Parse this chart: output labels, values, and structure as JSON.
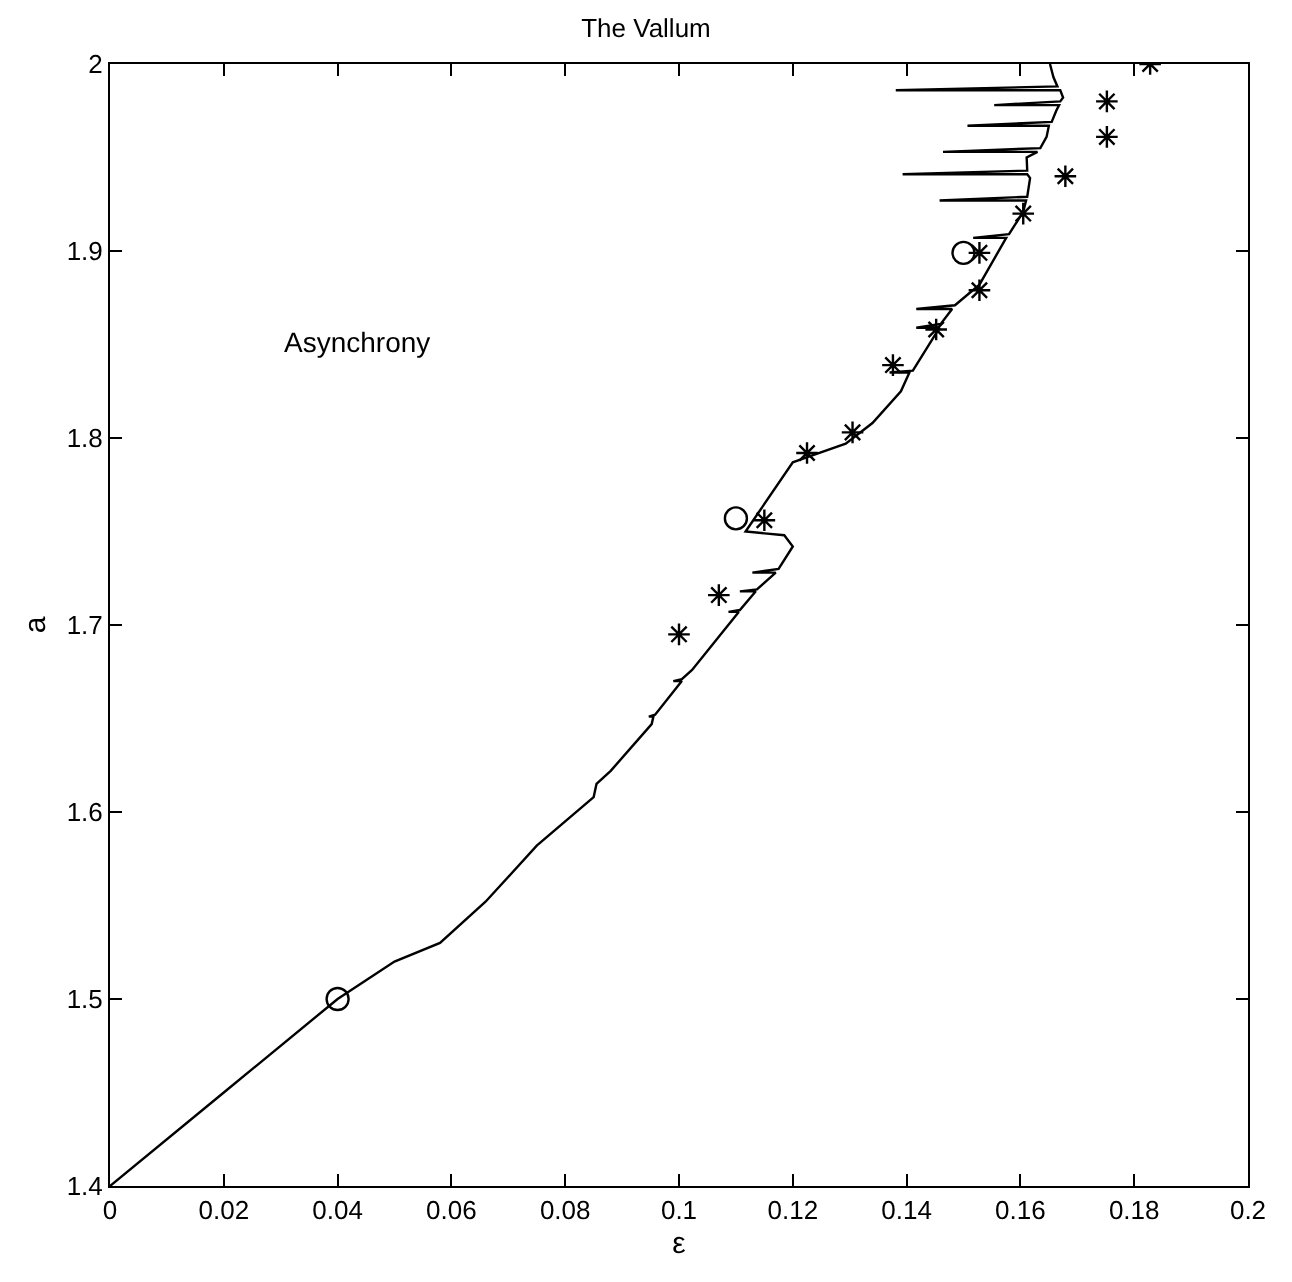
{
  "chart_data": {
    "type": "line",
    "title": "The Vallum",
    "xlabel": "ε",
    "ylabel": "a",
    "xlim": [
      0,
      0.2
    ],
    "ylim": [
      1.4,
      2
    ],
    "xticks": [
      0,
      0.02,
      0.04,
      0.06,
      0.08,
      0.1,
      0.12,
      0.14,
      0.16,
      0.18,
      0.2
    ],
    "yticks": [
      1.4,
      1.5,
      1.6,
      1.7,
      1.8,
      1.9,
      2
    ],
    "annotations": [
      "Asynchrony"
    ],
    "series": [
      {
        "color": "#000000",
        "marker": "none",
        "x": [
          0,
          0.02,
          0.04,
          0.05,
          0.058,
          0.066,
          0.075,
          0.085,
          0.0855,
          0.088,
          0.0952,
          0.0955,
          0.0947,
          0.0958,
          0.1005,
          0.099,
          0.1005,
          0.1023,
          0.1105,
          0.1087,
          0.1107,
          0.1135,
          0.1107,
          0.1137,
          0.117,
          0.1129,
          0.1175,
          0.12,
          0.1185,
          0.1117,
          0.12,
          0.1228,
          0.1293,
          0.134,
          0.139,
          0.1405,
          0.137,
          0.1411,
          0.1458,
          0.1417,
          0.146,
          0.148,
          0.1417,
          0.1485,
          0.1528,
          0.1575,
          0.1517,
          0.158,
          0.1605,
          0.161,
          0.1458,
          0.1612,
          0.1617,
          0.1612,
          0.1393,
          0.1612,
          0.1611,
          0.163,
          0.1464,
          0.1635,
          0.1646,
          0.165,
          0.1507,
          0.1655,
          0.1663,
          0.1668,
          0.1554,
          0.167,
          0.1675,
          0.167,
          0.1381,
          0.1665,
          0.1658,
          0.1652
        ],
        "values": [
          1.4,
          1.45,
          1.5,
          1.52,
          1.53,
          1.552,
          1.582,
          1.608,
          1.615,
          1.622,
          1.647,
          1.651,
          1.651,
          1.652,
          1.67,
          1.67,
          1.671,
          1.676,
          1.707,
          1.707,
          1.708,
          1.718,
          1.718,
          1.719,
          1.728,
          1.728,
          1.73,
          1.742,
          1.748,
          1.75,
          1.787,
          1.79,
          1.797,
          1.808,
          1.825,
          1.835,
          1.835,
          1.836,
          1.859,
          1.859,
          1.861,
          1.869,
          1.869,
          1.871,
          1.882,
          1.907,
          1.907,
          1.909,
          1.921,
          1.927,
          1.927,
          1.929,
          1.939,
          1.941,
          1.941,
          1.943,
          1.95,
          1.953,
          1.953,
          1.955,
          1.961,
          1.967,
          1.967,
          1.969,
          1.975,
          1.978,
          1.978,
          1.98,
          1.982,
          1.986,
          1.986,
          1.988,
          1.993,
          2.0
        ]
      },
      {
        "type": "scatter",
        "color": "#000000",
        "marker": "cross",
        "x": [
          0.1,
          0.107,
          0.115,
          0.1225,
          0.1305,
          0.1376,
          0.1452,
          0.1528,
          0.1528,
          0.1605,
          0.1679,
          0.1752,
          0.1752,
          0.1828
        ],
        "values": [
          1.695,
          1.716,
          1.756,
          1.792,
          1.803,
          1.839,
          1.858,
          1.879,
          1.899,
          1.92,
          1.94,
          1.961,
          1.98,
          2.0
        ]
      },
      {
        "type": "scatter",
        "color": "#000000",
        "marker": "circle",
        "x": [
          0.04,
          0.11,
          0.15
        ],
        "values": [
          1.5,
          1.757,
          1.899
        ]
      }
    ]
  }
}
